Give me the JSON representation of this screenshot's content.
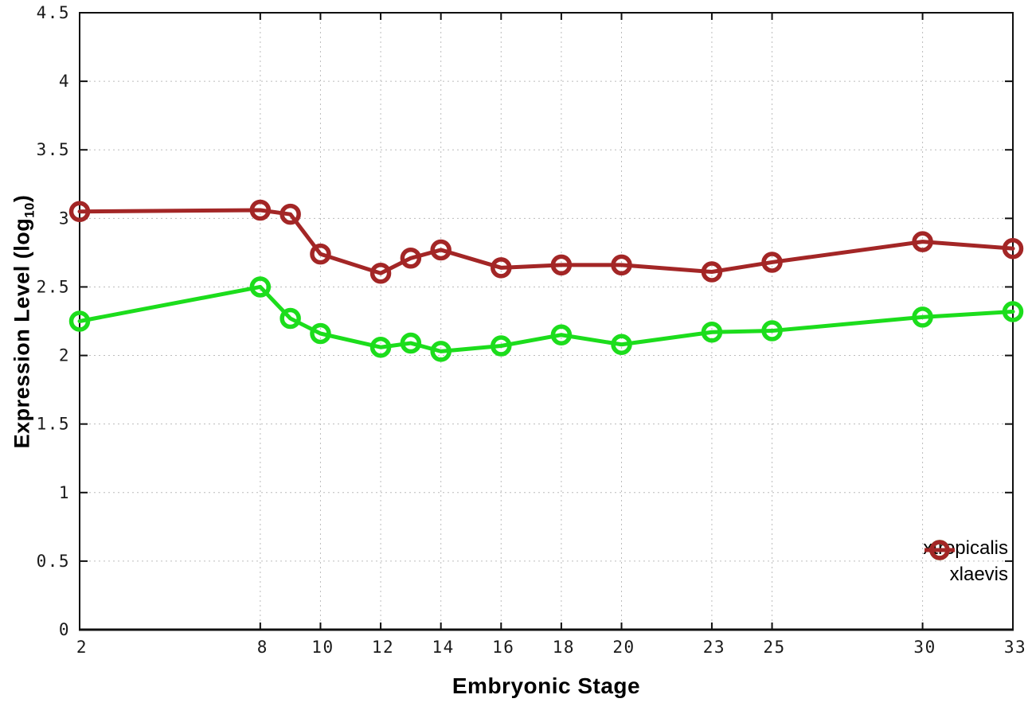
{
  "figure": {
    "x_axis_title": "Embryonic Stage",
    "y_axis_title_prefix": "Expression Level (log",
    "y_axis_title_sub": "10",
    "y_axis_title_suffix": ")"
  },
  "chart_data": {
    "type": "line",
    "title": "",
    "xlabel": "Embryonic Stage",
    "ylabel": "Expression Level (log10)",
    "xlim": [
      2,
      33
    ],
    "ylim": [
      0,
      4.5
    ],
    "grid": true,
    "grid_style": "dotted",
    "legend_position": "bottom-right-inside",
    "marker": "open-circle",
    "x": [
      2,
      8,
      9,
      10,
      12,
      13,
      14,
      16,
      18,
      20,
      23,
      25,
      30,
      33
    ],
    "xticks": [
      2,
      8,
      10,
      12,
      14,
      16,
      18,
      20,
      23,
      25,
      30,
      33
    ],
    "xtick_labels": [
      "2",
      "8",
      "10",
      "12",
      "14",
      "16",
      "18",
      "20",
      "23",
      "25",
      "30",
      "33"
    ],
    "yticks": [
      0,
      0.5,
      1,
      1.5,
      2,
      2.5,
      3,
      3.5,
      4,
      4.5
    ],
    "ytick_labels": [
      "0",
      "0.5",
      "1",
      "1.5",
      "2",
      "2.5",
      "3",
      "3.5",
      "4",
      "4.5"
    ],
    "series": [
      {
        "name": "xtropicalis",
        "color": "#1cdd1c",
        "values": [
          2.25,
          2.5,
          2.27,
          2.16,
          2.06,
          2.09,
          2.03,
          2.07,
          2.15,
          2.08,
          2.17,
          2.18,
          2.28,
          2.32
        ]
      },
      {
        "name": "xlaevis",
        "color": "#a32626",
        "values": [
          3.05,
          3.06,
          3.03,
          2.74,
          2.6,
          2.71,
          2.77,
          2.64,
          2.66,
          2.66,
          2.61,
          2.68,
          2.83,
          2.78
        ]
      }
    ],
    "axis_color": "#101010",
    "grid_color": "#bcbcbc"
  }
}
